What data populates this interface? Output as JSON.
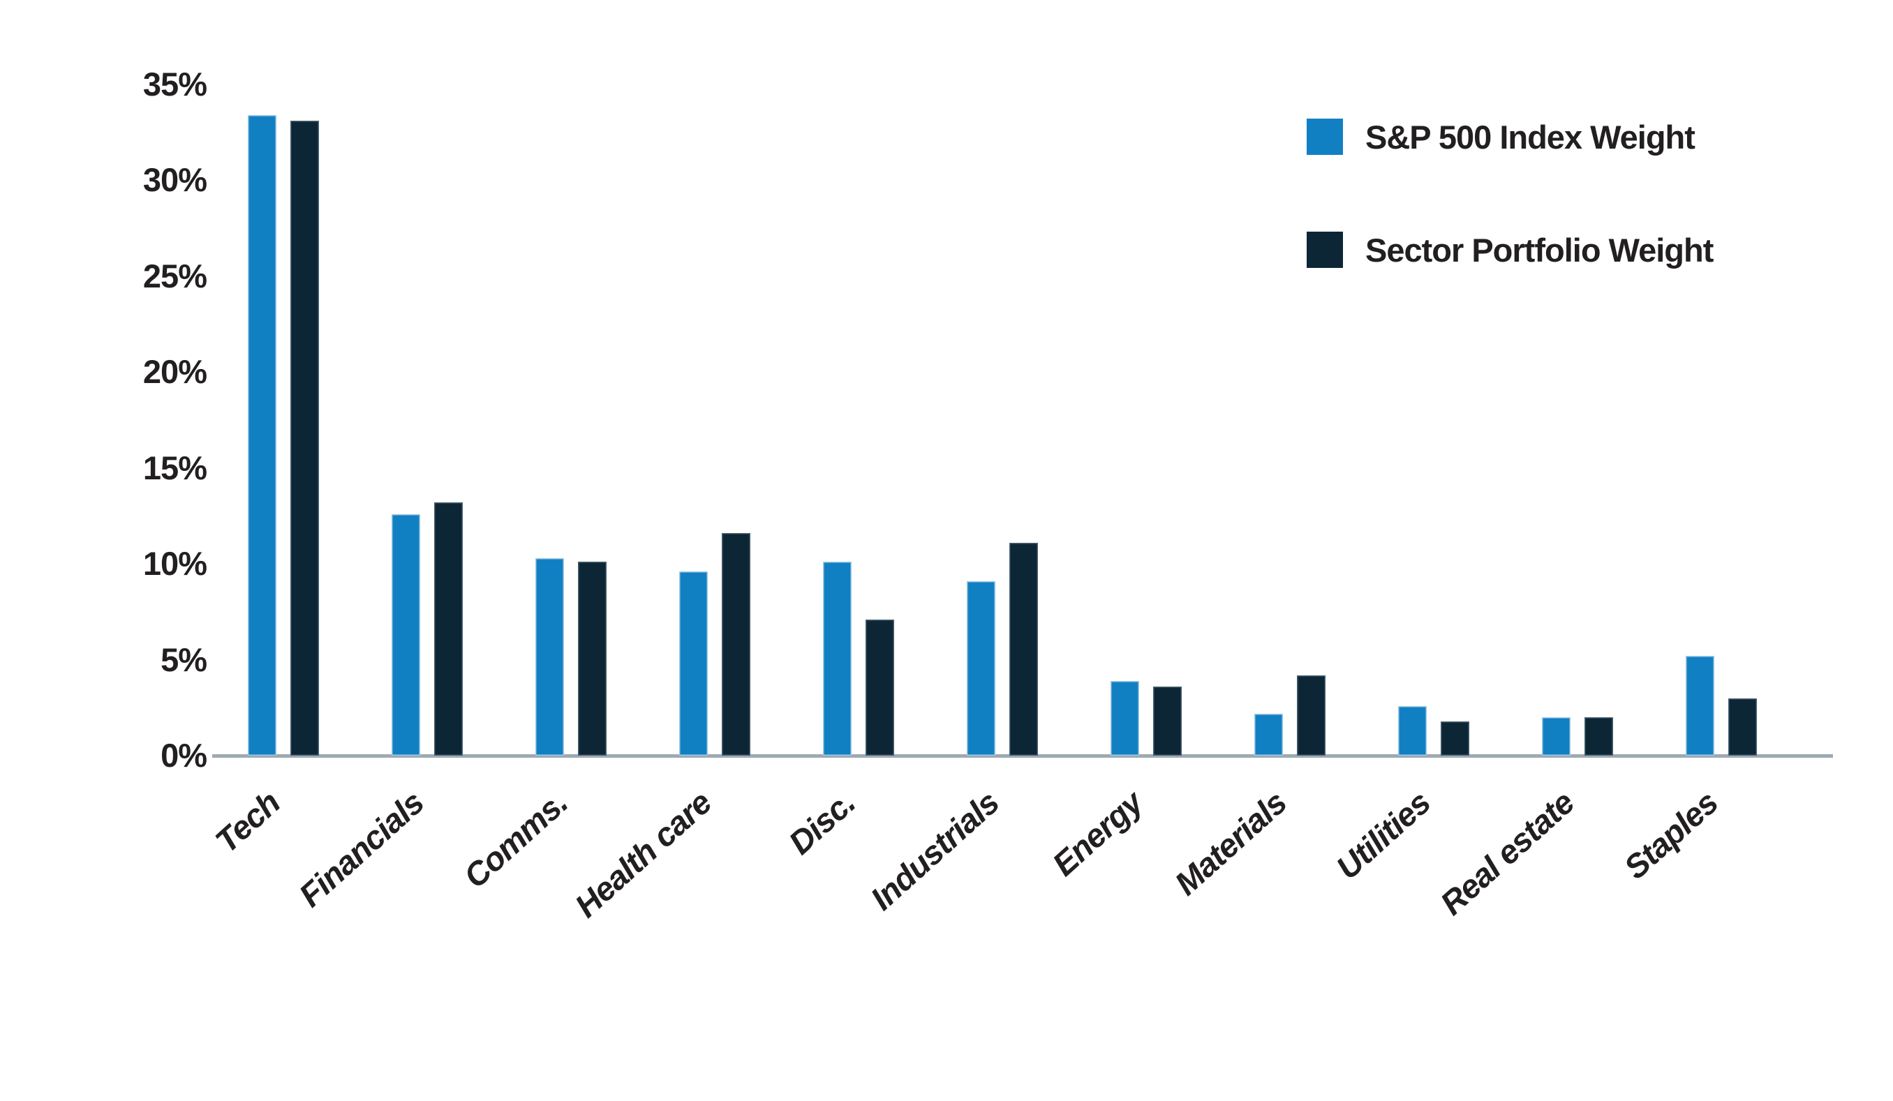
{
  "chart_data": {
    "type": "bar",
    "title": "",
    "categories": [
      "Tech",
      "Financials",
      "Comms.",
      "Health care",
      "Disc.",
      "Industrials",
      "Energy",
      "Materials",
      "Utilities",
      "Real estate",
      "Staples"
    ],
    "series": [
      {
        "name": "S&P 500 Index Weight",
        "color": "#1180c3",
        "values": [
          33.4,
          12.6,
          10.3,
          9.6,
          10.1,
          9.1,
          3.9,
          2.2,
          2.6,
          2.0,
          5.2
        ]
      },
      {
        "name": "Sector Portfolio Weight",
        "color": "#0c2636",
        "values": [
          33.1,
          13.2,
          10.1,
          11.6,
          7.1,
          11.1,
          3.6,
          4.2,
          1.8,
          2.0,
          3.0
        ]
      }
    ],
    "xlabel": "",
    "ylabel": "",
    "ylim": [
      0,
      35
    ],
    "ytick_values": [
      35,
      30,
      25,
      20,
      15,
      10,
      5,
      0
    ],
    "ytick_labels": [
      "35%",
      "30%",
      "25%",
      "20%",
      "15%",
      "10%",
      "5%",
      "0%"
    ],
    "value_format": "percent",
    "grid": false,
    "legend_position": "top-right"
  },
  "colors": {
    "background": "#ffffff",
    "text": "#221f20",
    "axis_line": "#9daab2",
    "series_sp500": "#1180c3",
    "series_sector": "#0c2636"
  }
}
